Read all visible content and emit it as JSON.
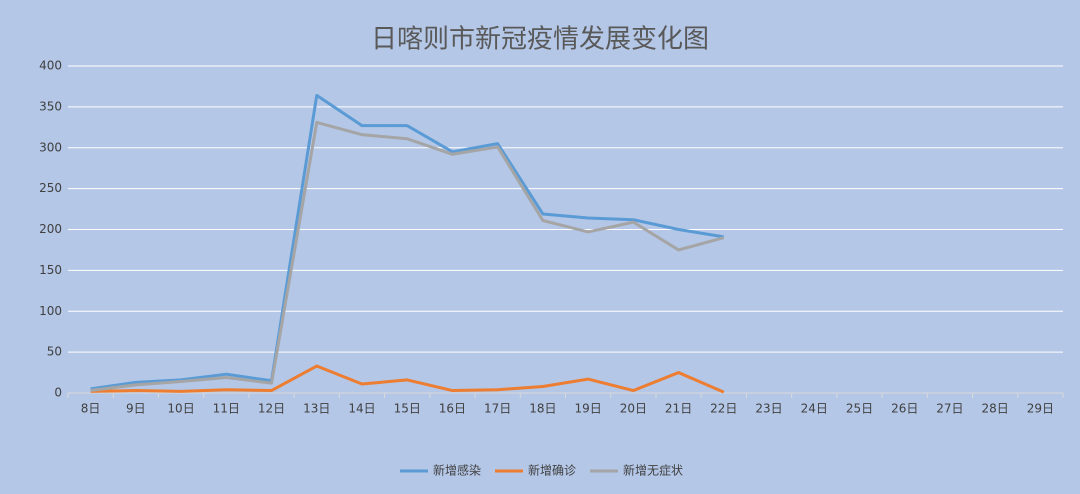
{
  "chart_data": {
    "type": "line",
    "title": "日喀则市新冠疫情发展变化图",
    "categories": [
      "8日",
      "9日",
      "10日",
      "11日",
      "12日",
      "13日",
      "14日",
      "15日",
      "16日",
      "17日",
      "18日",
      "19日",
      "20日",
      "21日",
      "22日",
      "23日",
      "24日",
      "25日",
      "26日",
      "27日",
      "28日",
      "29日"
    ],
    "series": [
      {
        "name": "新增感染",
        "color": "#5b9bd5",
        "values": [
          5,
          13,
          16,
          23,
          15,
          364,
          327,
          327,
          295,
          305,
          219,
          214,
          212,
          200,
          191,
          null,
          null,
          null,
          null,
          null,
          null,
          null
        ]
      },
      {
        "name": "新增确诊",
        "color": "#ed7d31",
        "values": [
          2,
          3,
          2,
          4,
          3,
          33,
          11,
          16,
          3,
          4,
          8,
          17,
          3,
          25,
          1,
          null,
          null,
          null,
          null,
          null,
          null,
          null
        ]
      },
      {
        "name": "新增无症状",
        "color": "#a5a5a5",
        "values": [
          3,
          10,
          14,
          19,
          12,
          331,
          316,
          311,
          292,
          301,
          211,
          197,
          209,
          175,
          190,
          null,
          null,
          null,
          null,
          null,
          null,
          null
        ]
      }
    ],
    "ylim": [
      0,
      400
    ],
    "yticks": [
      0,
      50,
      100,
      150,
      200,
      250,
      300,
      350,
      400
    ],
    "grid": true,
    "legend": "bottom"
  }
}
